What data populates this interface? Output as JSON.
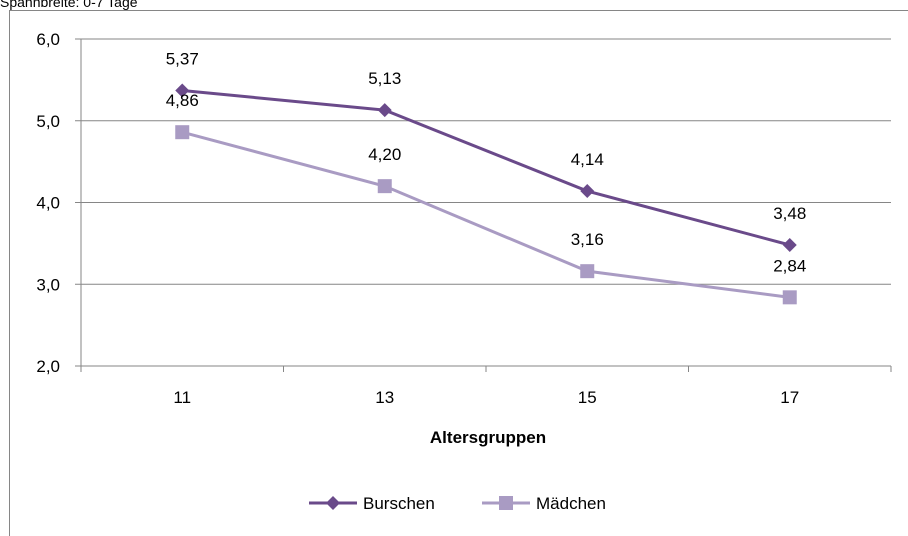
{
  "caption": "Spannbreite: 0-7 Tage",
  "chart_data": {
    "type": "line",
    "categories": [
      "11",
      "13",
      "15",
      "17"
    ],
    "series": [
      {
        "name": "Burschen",
        "values": [
          5.37,
          5.13,
          4.14,
          3.48
        ],
        "labels": [
          "5,37",
          "5,13",
          "4,14",
          "3,48"
        ],
        "color": "#6a4a8a",
        "marker": "diamond"
      },
      {
        "name": "Mädchen",
        "values": [
          4.86,
          4.2,
          3.16,
          2.84
        ],
        "labels": [
          "4,86",
          "4,20",
          "3,16",
          "2,84"
        ],
        "color": "#a99bc3",
        "marker": "square"
      }
    ],
    "xlabel": "Altersgruppen",
    "ylabel": "",
    "ylim": [
      2.0,
      6.0
    ],
    "yticks": [
      2.0,
      3.0,
      4.0,
      5.0,
      6.0
    ],
    "ytick_labels": [
      "2,0",
      "3,0",
      "4,0",
      "5,0",
      "6,0"
    ],
    "grid": true,
    "legend": "bottom"
  }
}
